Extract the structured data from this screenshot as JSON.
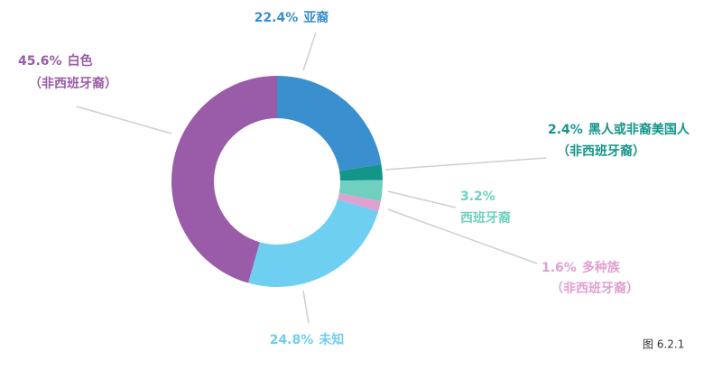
{
  "chart_data": {
    "type": "donut",
    "categories": [
      "亚裔",
      "黑人或非裔美国人",
      "西班牙裔",
      "多种族",
      "未知",
      "白色"
    ],
    "category_notes": [
      null,
      "（非西班牙裔）",
      null,
      "（非西班牙裔）",
      null,
      "（非西班牙裔）"
    ],
    "values": [
      22.4,
      2.4,
      3.2,
      1.6,
      24.8,
      45.6
    ],
    "value_labels": [
      "22.4%",
      "2.4%",
      "3.2%",
      "1.6%",
      "24.8%",
      "45.6%"
    ],
    "colors": [
      "#3a8fcf",
      "#14958a",
      "#6fd0c0",
      "#e0a0d0",
      "#6ecff0",
      "#9a5ca8"
    ],
    "figure_label": "图 6.2.1"
  }
}
